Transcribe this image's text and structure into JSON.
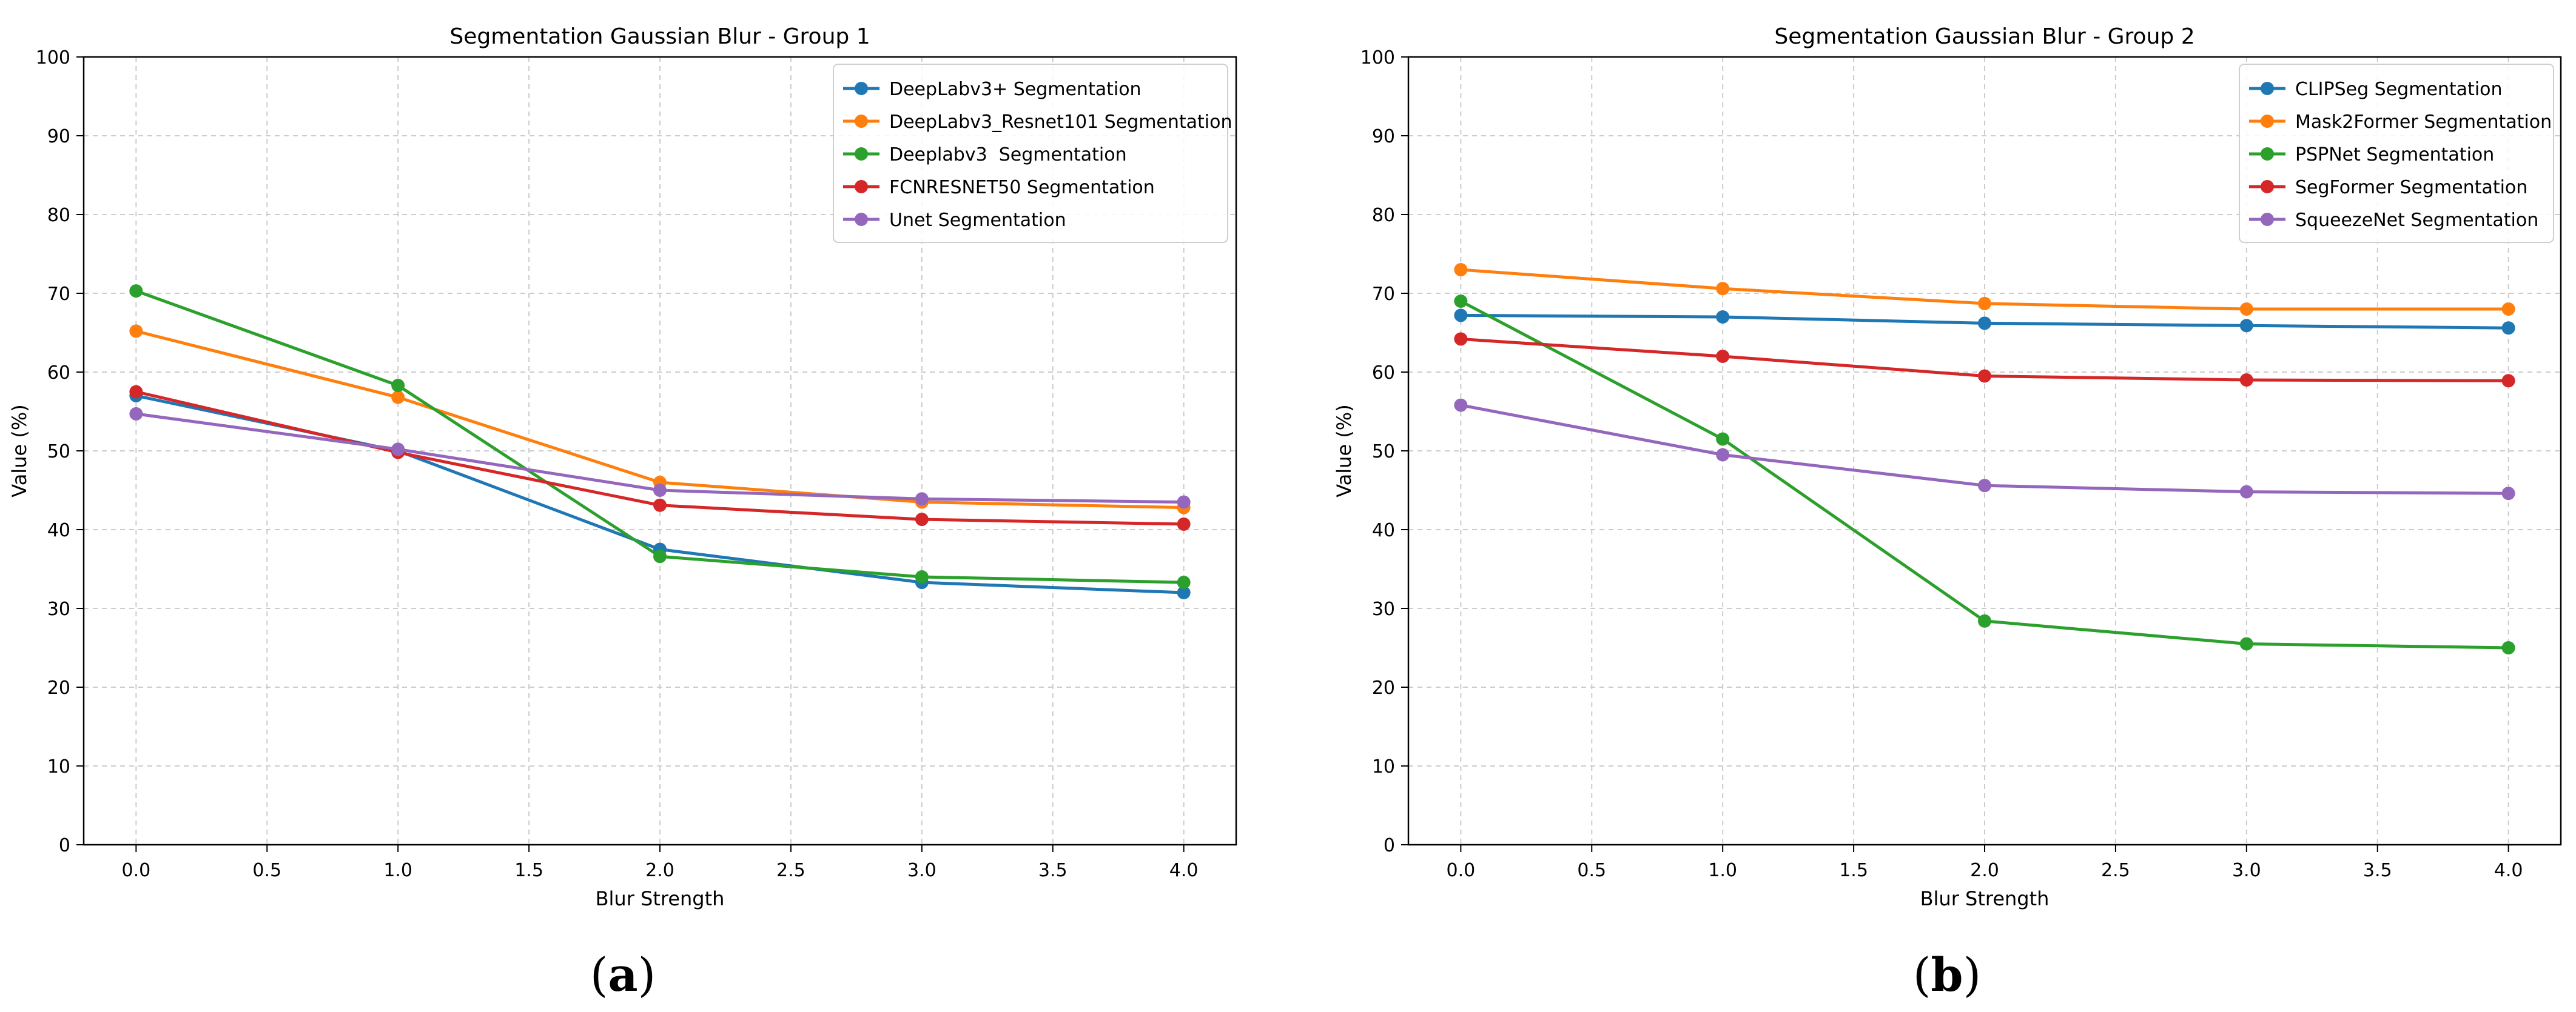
{
  "chart_data": [
    {
      "type": "line",
      "title": "Segmentation Gaussian Blur - Group 1",
      "xlabel": "Blur Strength",
      "ylabel": "Value (%)",
      "xlim": [
        -0.2,
        4.2
      ],
      "ylim": [
        0,
        100
      ],
      "xticks": [
        0.0,
        0.5,
        1.0,
        1.5,
        2.0,
        2.5,
        3.0,
        3.5,
        4.0
      ],
      "xtick_labels": [
        "0.0",
        "0.5",
        "1.0",
        "1.5",
        "2.0",
        "2.5",
        "3.0",
        "3.5",
        "4.0"
      ],
      "yticks": [
        0,
        10,
        20,
        30,
        40,
        50,
        60,
        70,
        80,
        90,
        100
      ],
      "ytick_labels": [
        "0",
        "10",
        "20",
        "30",
        "40",
        "50",
        "60",
        "70",
        "80",
        "90",
        "100"
      ],
      "grid": true,
      "legend_position": "top-right",
      "x": [
        0,
        1,
        2,
        3,
        4
      ],
      "caption": "(a)",
      "caption_letter": "a",
      "series": [
        {
          "name": "DeepLabv3+ Segmentation",
          "color": "#1f77b4",
          "values": [
            57.0,
            50.0,
            37.5,
            33.3,
            32.0
          ]
        },
        {
          "name": "DeepLabv3_Resnet101 Segmentation",
          "color": "#ff7f0e",
          "values": [
            65.2,
            56.8,
            46.0,
            43.5,
            42.8
          ]
        },
        {
          "name": "Deeplabv3  Segmentation",
          "color": "#2ca02c",
          "values": [
            70.3,
            58.3,
            36.6,
            34.0,
            33.3
          ]
        },
        {
          "name": "FCNRESNET50 Segmentation",
          "color": "#d62728",
          "values": [
            57.5,
            49.8,
            43.1,
            41.3,
            40.7
          ]
        },
        {
          "name": "Unet Segmentation",
          "color": "#9467bd",
          "values": [
            54.7,
            50.2,
            45.0,
            43.9,
            43.5
          ]
        }
      ]
    },
    {
      "type": "line",
      "title": "Segmentation Gaussian Blur - Group 2",
      "xlabel": "Blur Strength",
      "ylabel": "Value (%)",
      "xlim": [
        -0.2,
        4.2
      ],
      "ylim": [
        0,
        100
      ],
      "xticks": [
        0.0,
        0.5,
        1.0,
        1.5,
        2.0,
        2.5,
        3.0,
        3.5,
        4.0
      ],
      "xtick_labels": [
        "0.0",
        "0.5",
        "1.0",
        "1.5",
        "2.0",
        "2.5",
        "3.0",
        "3.5",
        "4.0"
      ],
      "yticks": [
        0,
        10,
        20,
        30,
        40,
        50,
        60,
        70,
        80,
        90,
        100
      ],
      "ytick_labels": [
        "0",
        "10",
        "20",
        "30",
        "40",
        "50",
        "60",
        "70",
        "80",
        "90",
        "100"
      ],
      "grid": true,
      "legend_position": "top-right",
      "x": [
        0,
        1,
        2,
        3,
        4
      ],
      "caption": "(b)",
      "caption_letter": "b",
      "series": [
        {
          "name": "CLIPSeg Segmentation",
          "color": "#1f77b4",
          "values": [
            67.2,
            67.0,
            66.2,
            65.9,
            65.6
          ]
        },
        {
          "name": "Mask2Former Segmentation",
          "color": "#ff7f0e",
          "values": [
            73.0,
            70.6,
            68.7,
            68.0,
            68.0
          ]
        },
        {
          "name": "PSPNet Segmentation",
          "color": "#2ca02c",
          "values": [
            69.0,
            51.5,
            28.4,
            25.5,
            25.0
          ]
        },
        {
          "name": "SegFormer Segmentation",
          "color": "#d62728",
          "values": [
            64.2,
            62.0,
            59.5,
            59.0,
            58.9
          ]
        },
        {
          "name": "SqueezeNet Segmentation",
          "color": "#9467bd",
          "values": [
            55.8,
            49.5,
            45.6,
            44.8,
            44.6
          ]
        }
      ]
    }
  ]
}
